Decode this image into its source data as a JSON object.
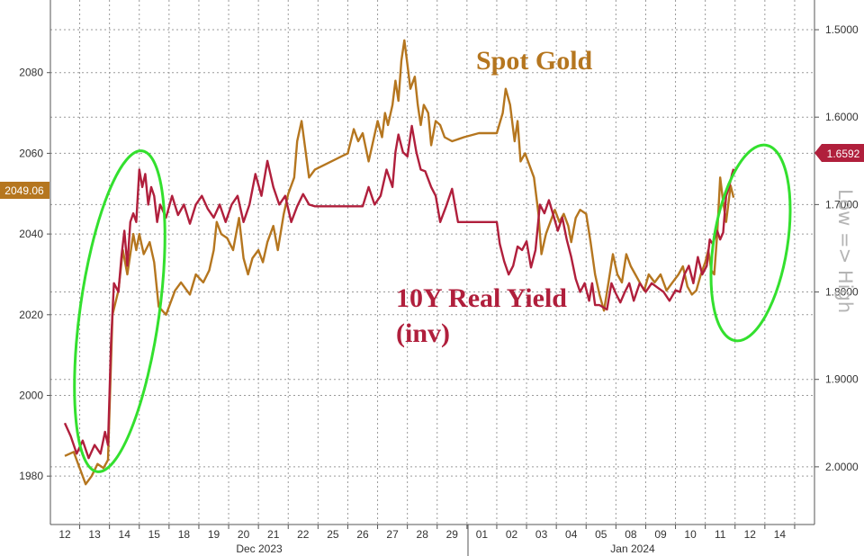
{
  "chart_data": {
    "type": "line",
    "x": [
      "12",
      "13",
      "14",
      "15",
      "18",
      "19",
      "20",
      "21",
      "22",
      "25",
      "26",
      "27",
      "28",
      "29",
      "01",
      "02",
      "03",
      "04",
      "05",
      "08",
      "09",
      "10",
      "11",
      "12",
      "14"
    ],
    "months": [
      "Dec 2023",
      "Jan 2024"
    ],
    "y_left": {
      "ticks": [
        1980,
        2000,
        2020,
        2040,
        2060,
        2080
      ],
      "range": [
        1968,
        2098
      ]
    },
    "y_right": {
      "ticks": [
        "1.5000",
        "1.6000",
        "1.7000",
        "1.8000",
        "1.9000",
        "2.0000"
      ],
      "range": [
        1.466,
        2.066
      ],
      "inverted": true
    },
    "series": [
      {
        "name": "Spot Gold",
        "color": "#b5761f",
        "axis": "left",
        "last_value": "2049.06",
        "values": [
          [
            0,
            1985
          ],
          [
            0.3,
            1986
          ],
          [
            0.5,
            1982
          ],
          [
            0.7,
            1978
          ],
          [
            0.9,
            1980
          ],
          [
            1.1,
            1983
          ],
          [
            1.3,
            1982
          ],
          [
            1.45,
            1984
          ],
          [
            1.6,
            2020
          ],
          [
            1.8,
            2026
          ],
          [
            1.95,
            2036
          ],
          [
            2.1,
            2030
          ],
          [
            2.3,
            2040
          ],
          [
            2.4,
            2036
          ],
          [
            2.5,
            2040
          ],
          [
            2.65,
            2035
          ],
          [
            2.85,
            2038
          ],
          [
            3.0,
            2033
          ],
          [
            3.15,
            2022
          ],
          [
            3.4,
            2020
          ],
          [
            3.7,
            2026
          ],
          [
            3.9,
            2028
          ],
          [
            4.2,
            2025
          ],
          [
            4.4,
            2030
          ],
          [
            4.65,
            2028
          ],
          [
            4.85,
            2031
          ],
          [
            5.0,
            2036
          ],
          [
            5.1,
            2043
          ],
          [
            5.25,
            2040
          ],
          [
            5.45,
            2039
          ],
          [
            5.65,
            2036
          ],
          [
            5.85,
            2044
          ],
          [
            6.0,
            2034
          ],
          [
            6.15,
            2030
          ],
          [
            6.3,
            2034
          ],
          [
            6.5,
            2036
          ],
          [
            6.65,
            2033
          ],
          [
            6.8,
            2038
          ],
          [
            7.0,
            2042
          ],
          [
            7.15,
            2036
          ],
          [
            7.35,
            2045
          ],
          [
            7.5,
            2050
          ],
          [
            7.7,
            2054
          ],
          [
            7.8,
            2063
          ],
          [
            7.95,
            2068
          ],
          [
            8.2,
            2054
          ],
          [
            8.4,
            2056
          ],
          [
            9.5,
            2060
          ],
          [
            9.7,
            2066
          ],
          [
            9.85,
            2063
          ],
          [
            10.0,
            2065
          ],
          [
            10.2,
            2058
          ],
          [
            10.35,
            2063
          ],
          [
            10.5,
            2068
          ],
          [
            10.65,
            2064
          ],
          [
            10.75,
            2070
          ],
          [
            10.85,
            2067
          ],
          [
            11.0,
            2072
          ],
          [
            11.1,
            2078
          ],
          [
            11.2,
            2073
          ],
          [
            11.3,
            2083
          ],
          [
            11.4,
            2088
          ],
          [
            11.5,
            2082
          ],
          [
            11.6,
            2076
          ],
          [
            11.75,
            2079
          ],
          [
            11.85,
            2072
          ],
          [
            11.95,
            2067
          ],
          [
            12.05,
            2072
          ],
          [
            12.2,
            2070
          ],
          [
            12.3,
            2062
          ],
          [
            12.45,
            2068
          ],
          [
            12.6,
            2067
          ],
          [
            12.75,
            2064
          ],
          [
            13.0,
            2063
          ],
          [
            13.4,
            2064
          ],
          [
            13.9,
            2065
          ],
          [
            14.5,
            2065
          ],
          [
            14.7,
            2070
          ],
          [
            14.8,
            2076
          ],
          [
            14.95,
            2072
          ],
          [
            15.1,
            2063
          ],
          [
            15.2,
            2068
          ],
          [
            15.3,
            2058
          ],
          [
            15.45,
            2060
          ],
          [
            15.6,
            2057
          ],
          [
            15.75,
            2054
          ],
          [
            15.9,
            2045
          ],
          [
            16.0,
            2035
          ],
          [
            16.15,
            2040
          ],
          [
            16.3,
            2043
          ],
          [
            16.45,
            2046
          ],
          [
            16.6,
            2043
          ],
          [
            16.75,
            2045
          ],
          [
            16.9,
            2042
          ],
          [
            17.0,
            2038
          ],
          [
            17.15,
            2044
          ],
          [
            17.3,
            2046
          ],
          [
            17.5,
            2045
          ],
          [
            17.65,
            2038
          ],
          [
            17.8,
            2030
          ],
          [
            17.95,
            2025
          ],
          [
            18.1,
            2021
          ],
          [
            18.25,
            2028
          ],
          [
            18.4,
            2035
          ],
          [
            18.55,
            2030
          ],
          [
            18.7,
            2028
          ],
          [
            18.85,
            2035
          ],
          [
            19.0,
            2032
          ],
          [
            19.15,
            2030
          ],
          [
            19.3,
            2028
          ],
          [
            19.45,
            2026
          ],
          [
            19.6,
            2030
          ],
          [
            19.8,
            2028
          ],
          [
            20.0,
            2030
          ],
          [
            20.2,
            2026
          ],
          [
            20.4,
            2028
          ],
          [
            20.6,
            2030
          ],
          [
            20.75,
            2032
          ],
          [
            20.9,
            2027
          ],
          [
            21.05,
            2025
          ],
          [
            21.2,
            2026
          ],
          [
            21.35,
            2030
          ],
          [
            21.5,
            2033
          ],
          [
            21.6,
            2036
          ],
          [
            21.7,
            2031
          ],
          [
            21.8,
            2030
          ],
          [
            21.9,
            2040
          ],
          [
            22.0,
            2054
          ],
          [
            22.1,
            2048
          ],
          [
            22.2,
            2043
          ],
          [
            22.35,
            2052
          ],
          [
            22.45,
            2049
          ]
        ]
      },
      {
        "name": "10Y Real Yield (inv)",
        "color": "#b01f3c",
        "axis": "right",
        "last_value": "1.6592",
        "values": [
          [
            0,
            1.95
          ],
          [
            0.2,
            1.965
          ],
          [
            0.4,
            1.985
          ],
          [
            0.6,
            1.97
          ],
          [
            0.8,
            1.99
          ],
          [
            1.0,
            1.975
          ],
          [
            1.2,
            1.985
          ],
          [
            1.35,
            1.96
          ],
          [
            1.45,
            1.975
          ],
          [
            1.55,
            1.86
          ],
          [
            1.65,
            1.79
          ],
          [
            1.8,
            1.8
          ],
          [
            1.9,
            1.76
          ],
          [
            2.0,
            1.73
          ],
          [
            2.1,
            1.77
          ],
          [
            2.2,
            1.72
          ],
          [
            2.3,
            1.71
          ],
          [
            2.4,
            1.72
          ],
          [
            2.5,
            1.66
          ],
          [
            2.6,
            1.68
          ],
          [
            2.7,
            1.665
          ],
          [
            2.8,
            1.7
          ],
          [
            2.9,
            1.68
          ],
          [
            3.0,
            1.69
          ],
          [
            3.1,
            1.72
          ],
          [
            3.2,
            1.7
          ],
          [
            3.4,
            1.715
          ],
          [
            3.6,
            1.69
          ],
          [
            3.8,
            1.712
          ],
          [
            4.0,
            1.7
          ],
          [
            4.2,
            1.722
          ],
          [
            4.4,
            1.7
          ],
          [
            4.6,
            1.69
          ],
          [
            4.8,
            1.705
          ],
          [
            5.0,
            1.715
          ],
          [
            5.2,
            1.7
          ],
          [
            5.4,
            1.72
          ],
          [
            5.6,
            1.7
          ],
          [
            5.8,
            1.69
          ],
          [
            6.0,
            1.72
          ],
          [
            6.2,
            1.7
          ],
          [
            6.4,
            1.665
          ],
          [
            6.6,
            1.69
          ],
          [
            6.8,
            1.65
          ],
          [
            7.0,
            1.68
          ],
          [
            7.2,
            1.7
          ],
          [
            7.4,
            1.69
          ],
          [
            7.6,
            1.72
          ],
          [
            7.8,
            1.702
          ],
          [
            8.0,
            1.688
          ],
          [
            8.2,
            1.7
          ],
          [
            8.4,
            1.702
          ],
          [
            10.0,
            1.702
          ],
          [
            10.2,
            1.68
          ],
          [
            10.4,
            1.7
          ],
          [
            10.6,
            1.69
          ],
          [
            10.8,
            1.66
          ],
          [
            11.0,
            1.68
          ],
          [
            11.1,
            1.64
          ],
          [
            11.2,
            1.62
          ],
          [
            11.35,
            1.64
          ],
          [
            11.5,
            1.645
          ],
          [
            11.65,
            1.61
          ],
          [
            11.8,
            1.64
          ],
          [
            11.95,
            1.66
          ],
          [
            12.1,
            1.662
          ],
          [
            12.3,
            1.68
          ],
          [
            12.45,
            1.69
          ],
          [
            12.6,
            1.72
          ],
          [
            12.8,
            1.702
          ],
          [
            13.0,
            1.682
          ],
          [
            13.2,
            1.72
          ],
          [
            14.5,
            1.72
          ],
          [
            14.6,
            1.745
          ],
          [
            14.75,
            1.765
          ],
          [
            14.9,
            1.78
          ],
          [
            15.05,
            1.77
          ],
          [
            15.2,
            1.748
          ],
          [
            15.35,
            1.752
          ],
          [
            15.5,
            1.742
          ],
          [
            15.65,
            1.772
          ],
          [
            15.8,
            1.752
          ],
          [
            15.95,
            1.7
          ],
          [
            16.1,
            1.71
          ],
          [
            16.25,
            1.695
          ],
          [
            16.4,
            1.712
          ],
          [
            16.55,
            1.73
          ],
          [
            16.7,
            1.715
          ],
          [
            16.85,
            1.74
          ],
          [
            17.0,
            1.76
          ],
          [
            17.15,
            1.785
          ],
          [
            17.3,
            1.8
          ],
          [
            17.45,
            1.79
          ],
          [
            17.6,
            1.81
          ],
          [
            17.7,
            1.79
          ],
          [
            17.8,
            1.815
          ],
          [
            17.95,
            1.815
          ],
          [
            18.2,
            1.82
          ],
          [
            18.35,
            1.79
          ],
          [
            18.5,
            1.802
          ],
          [
            18.65,
            1.812
          ],
          [
            18.8,
            1.8
          ],
          [
            18.95,
            1.79
          ],
          [
            19.1,
            1.81
          ],
          [
            19.3,
            1.79
          ],
          [
            19.5,
            1.8
          ],
          [
            19.7,
            1.79
          ],
          [
            19.9,
            1.795
          ],
          [
            20.1,
            1.8
          ],
          [
            20.3,
            1.81
          ],
          [
            20.5,
            1.798
          ],
          [
            20.65,
            1.8
          ],
          [
            20.8,
            1.78
          ],
          [
            20.95,
            1.77
          ],
          [
            21.1,
            1.79
          ],
          [
            21.25,
            1.76
          ],
          [
            21.4,
            1.78
          ],
          [
            21.55,
            1.77
          ],
          [
            21.65,
            1.74
          ],
          [
            21.75,
            1.745
          ],
          [
            21.9,
            1.73
          ],
          [
            22.0,
            1.74
          ],
          [
            22.1,
            1.732
          ],
          [
            22.2,
            1.69
          ],
          [
            22.3,
            1.68
          ],
          [
            22.4,
            1.665
          ],
          [
            22.45,
            1.6592
          ]
        ]
      }
    ],
    "annotations": {
      "gold_label": "Spot Gold",
      "yield_label_line1": "10Y Real Yield",
      "yield_label_line2": "(inv)",
      "right_note": "Low => High"
    },
    "grid": true
  }
}
